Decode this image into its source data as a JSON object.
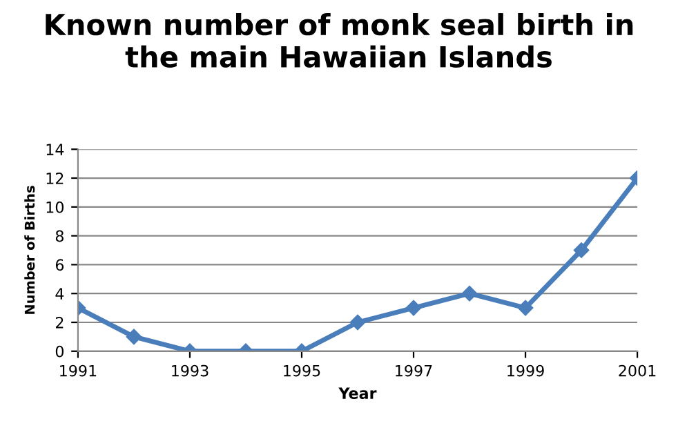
{
  "chart_data": {
    "type": "line",
    "title": "Known number of monk seal birth in\nthe main Hawaiian Islands",
    "xlabel": "Year",
    "ylabel": "Number of Births",
    "x": [
      1991,
      1992,
      1993,
      1994,
      1995,
      1996,
      1997,
      1998,
      1999,
      2000,
      2001
    ],
    "series": [
      {
        "color": "#4a7ebb",
        "values": [
          3,
          1,
          0,
          0,
          0,
          2,
          3,
          4,
          3,
          7,
          12
        ]
      }
    ],
    "xlim": [
      1991,
      2001
    ],
    "xticks": [
      1991,
      1993,
      1995,
      1997,
      1999,
      2001
    ],
    "ylim": [
      0,
      14
    ],
    "yticks": [
      0,
      2,
      4,
      6,
      8,
      10,
      12,
      14
    ],
    "grid": "y",
    "legend": false,
    "marker": "diamond",
    "line_style": "solid"
  }
}
